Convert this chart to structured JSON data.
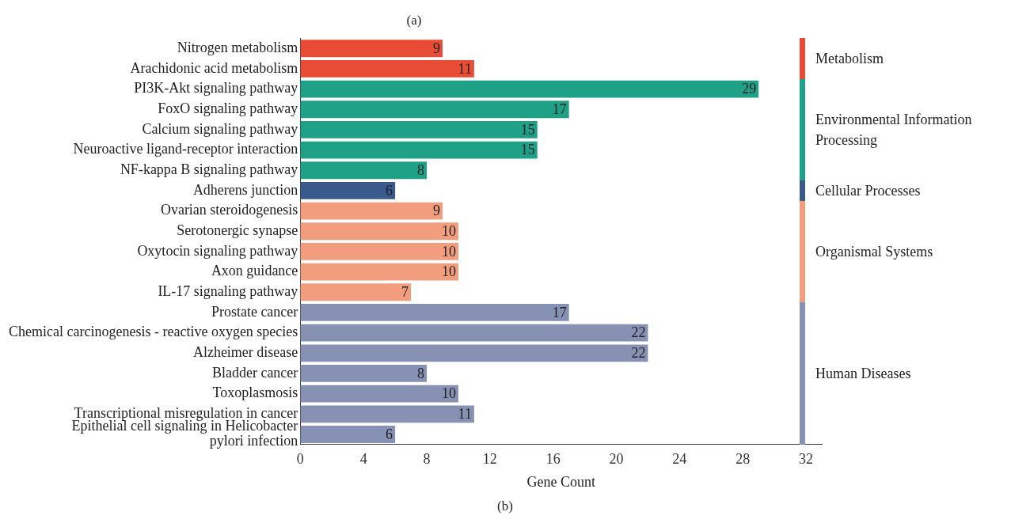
{
  "chart_data": {
    "type": "bar",
    "orientation": "horizontal",
    "stacked": true,
    "title": "(a)",
    "xlabel": "Gene Count",
    "annotations": [
      "(b)"
    ],
    "categories": [
      "Nitrogen metabolism",
      "Arachidonic acid metabolism",
      "PI3K-Akt signaling pathway",
      "FoxO signaling pathway",
      "Calcium signaling pathway",
      "Neuroactive ligand-receptor interaction",
      "NF-kappa B signaling pathway",
      "Adherens junction",
      "Ovarian steroidogenesis",
      "Serotonergic synapse",
      "Oxytocin signaling pathway",
      "Axon guidance",
      "IL-17 signaling pathway",
      "Prostate cancer",
      "Chemical carcinogenesis - reactive oxygen species",
      "Alzheimer disease",
      "Bladder cancer",
      "Toxoplasmosis",
      "Transcriptional misregulation in cancer",
      "Epithelial cell signaling in Helicobacter pylori infection"
    ],
    "series": [
      {
        "name": "Metabolism",
        "color": "#e84c35",
        "values": [
          9,
          11,
          null,
          null,
          null,
          null,
          null,
          null,
          null,
          null,
          null,
          null,
          null,
          null,
          null,
          null,
          null,
          null,
          null,
          null
        ]
      },
      {
        "name": "Environmental Information Processing",
        "color": "#1fa187",
        "values": [
          null,
          null,
          29,
          17,
          15,
          15,
          8,
          null,
          null,
          null,
          null,
          null,
          null,
          null,
          null,
          null,
          null,
          null,
          null,
          null
        ]
      },
      {
        "name": "Cellular Processes",
        "color": "#3a5a8c",
        "values": [
          null,
          null,
          null,
          null,
          null,
          null,
          null,
          6,
          null,
          null,
          null,
          null,
          null,
          null,
          null,
          null,
          null,
          null,
          null,
          null
        ]
      },
      {
        "name": "Organismal Systems",
        "color": "#f29d7e",
        "values": [
          null,
          null,
          null,
          null,
          null,
          null,
          null,
          null,
          9,
          10,
          10,
          10,
          7,
          null,
          null,
          null,
          null,
          null,
          null,
          null
        ]
      },
      {
        "name": "Human Diseases",
        "color": "#8691b4",
        "values": [
          null,
          null,
          null,
          null,
          null,
          null,
          null,
          null,
          null,
          null,
          null,
          null,
          null,
          17,
          22,
          22,
          8,
          10,
          11,
          6
        ]
      }
    ],
    "xlim": [
      0,
      33
    ],
    "xticks": [
      0,
      4,
      8,
      12,
      16,
      20,
      24,
      28,
      32
    ],
    "data_labels": true,
    "grid": false,
    "legend": "right"
  }
}
